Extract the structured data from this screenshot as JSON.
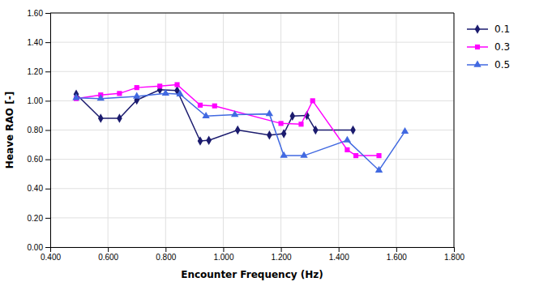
{
  "chart_data": {
    "type": "line",
    "xlabel": "Encounter Frequency (Hz)",
    "ylabel": "Heave RAO [-]",
    "series": [
      {
        "name": "0.1",
        "color": "#1B1B6E",
        "marker": "diamond",
        "x": [
          0.49,
          0.575,
          0.64,
          0.7,
          0.78,
          0.84,
          0.92,
          0.95,
          1.05,
          1.16,
          1.21,
          1.24,
          1.29,
          1.32,
          1.45
        ],
        "values": [
          1.045,
          0.88,
          0.88,
          1.005,
          1.075,
          1.07,
          0.725,
          0.73,
          0.8,
          0.765,
          0.775,
          0.895,
          0.9,
          0.8,
          0.8
        ]
      },
      {
        "name": "0.3",
        "color": "#FF00FF",
        "marker": "square",
        "x": [
          0.49,
          0.575,
          0.64,
          0.7,
          0.78,
          0.84,
          0.92,
          0.97,
          1.2,
          1.27,
          1.31,
          1.43,
          1.46,
          1.54
        ],
        "values": [
          1.015,
          1.04,
          1.05,
          1.09,
          1.1,
          1.11,
          0.97,
          0.965,
          0.845,
          0.84,
          1.0,
          0.665,
          0.625,
          0.625
        ]
      },
      {
        "name": "0.5",
        "color": "#4169E1",
        "marker": "triangle",
        "x": [
          0.49,
          0.575,
          0.7,
          0.8,
          0.85,
          0.94,
          1.04,
          1.16,
          1.21,
          1.28,
          1.43,
          1.54,
          1.63
        ],
        "values": [
          1.02,
          1.015,
          1.03,
          1.05,
          1.045,
          0.895,
          0.905,
          0.91,
          0.625,
          0.625,
          0.73,
          0.525,
          0.79
        ]
      }
    ],
    "xlim": [
      0.4,
      1.8
    ],
    "ylim": [
      0,
      1.6
    ],
    "xticks": [
      {
        "value": 0.4,
        "label": "0.400"
      },
      {
        "value": 0.6,
        "label": "0.600"
      },
      {
        "value": 0.8,
        "label": "0.800"
      },
      {
        "value": 1.0,
        "label": "1.000"
      },
      {
        "value": 1.2,
        "label": "1.200"
      },
      {
        "value": 1.4,
        "label": "1.400"
      },
      {
        "value": 1.6,
        "label": "1.600"
      },
      {
        "value": 1.8,
        "label": "1.800"
      }
    ],
    "yticks": [
      {
        "value": 0,
        "label": "0.00"
      },
      {
        "value": 0.2,
        "label": "0.20"
      },
      {
        "value": 0.4,
        "label": "0.40"
      },
      {
        "value": 0.6,
        "label": "0.60"
      },
      {
        "value": 0.8,
        "label": "0.80"
      },
      {
        "value": 1.0,
        "label": "1.00"
      },
      {
        "value": 1.2,
        "label": "1.20"
      },
      {
        "value": 1.4,
        "label": "1.40"
      },
      {
        "value": 1.6,
        "label": "1.60"
      }
    ],
    "grid": true,
    "legend": "right"
  }
}
